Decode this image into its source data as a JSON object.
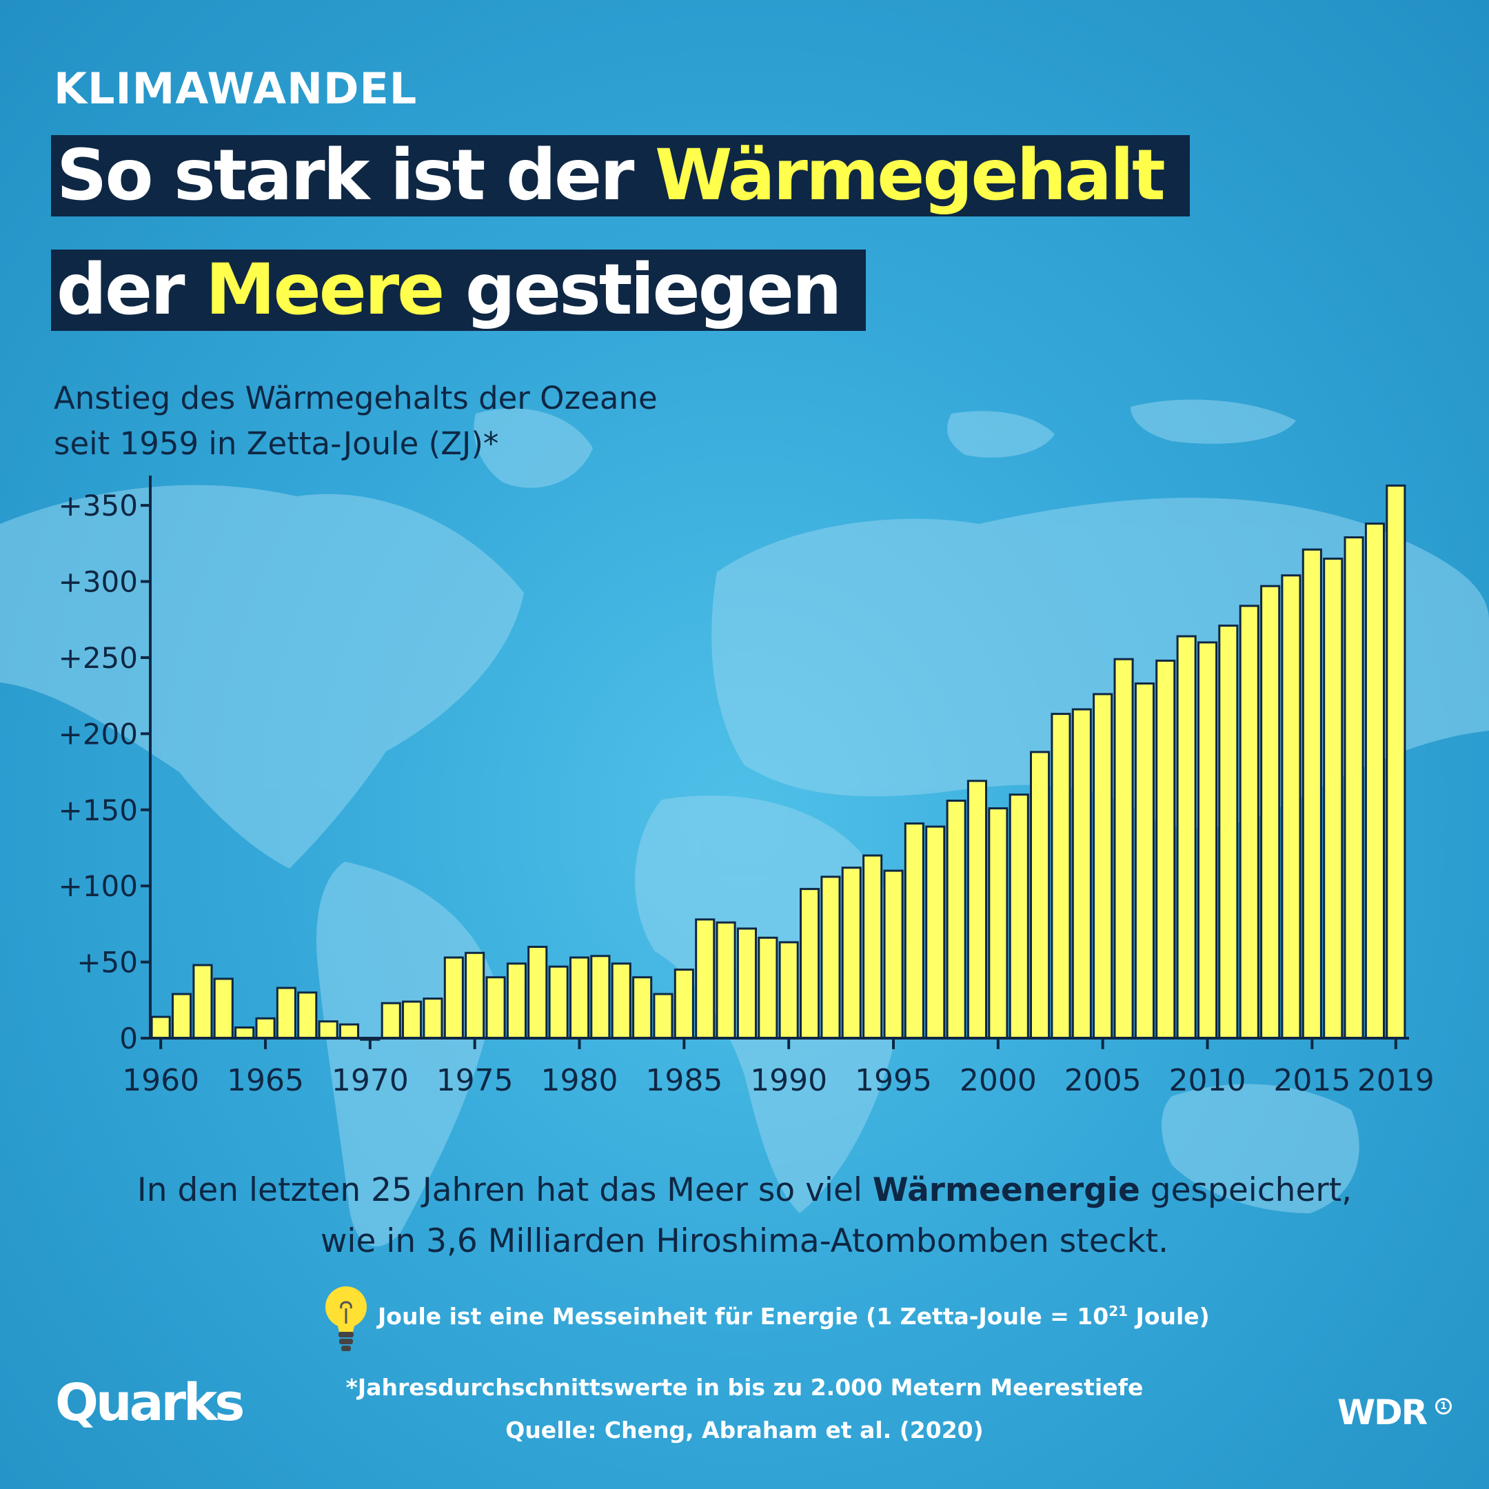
{
  "kicker": "KLIMAWANDEL",
  "headline": {
    "line1_part1": "So stark ist der ",
    "line1_highlight": "Wärmegehalt",
    "line2_part1": "der ",
    "line2_highlight": "Meere",
    "line2_part2": " gestiegen"
  },
  "subtitle": {
    "line1": "Anstieg des Wärmegehalts der Ozeane",
    "line2": "seit 1959 in Zetta-Joule (ZJ)*"
  },
  "statement": {
    "line1_part1": "In den letzten 25 Jahren hat das Meer so viel ",
    "line1_bold": "Wärmeenergie",
    "line1_part2": " gespeichert,",
    "line2": "wie in 3,6 Milliarden Hiroshima-Atombomben steckt."
  },
  "note": {
    "text_before": "Joule ist eine Messeinheit für Energie (1 Zetta-Joule = 10",
    "superscript": "21",
    "text_after": " Joule)"
  },
  "footnote": "*Jahresdurchschnittswerte in bis zu 2.000 Metern Meerestiefe",
  "source": "Quelle: Cheng, Abraham et al. (2020)",
  "brand_left": "Quarks",
  "brand_right": "WDR",
  "brand_right_mark": "1",
  "colors": {
    "background": "#35a8d9",
    "headline_box": "#0e2744",
    "highlight": "#ffff4c",
    "bar_fill": "#ffff66",
    "text_dark": "#0e2744",
    "land": "#8fd3ef"
  },
  "icons": [
    "world-map-background",
    "lightbulb-icon"
  ],
  "chart_data": {
    "type": "bar",
    "x": [
      1960,
      1961,
      1962,
      1963,
      1964,
      1965,
      1966,
      1967,
      1968,
      1969,
      1970,
      1971,
      1972,
      1973,
      1974,
      1975,
      1976,
      1977,
      1978,
      1979,
      1980,
      1981,
      1982,
      1983,
      1984,
      1985,
      1986,
      1987,
      1988,
      1989,
      1990,
      1991,
      1992,
      1993,
      1994,
      1995,
      1996,
      1997,
      1998,
      1999,
      2000,
      2001,
      2002,
      2003,
      2004,
      2005,
      2006,
      2007,
      2008,
      2009,
      2010,
      2011,
      2012,
      2013,
      2014,
      2015,
      2016,
      2017,
      2018,
      2019
    ],
    "values": [
      14,
      29,
      48,
      39,
      7,
      13,
      33,
      30,
      11,
      9,
      -1,
      23,
      24,
      26,
      53,
      56,
      40,
      49,
      60,
      47,
      53,
      54,
      49,
      40,
      29,
      45,
      78,
      76,
      72,
      66,
      63,
      98,
      106,
      112,
      120,
      110,
      141,
      139,
      156,
      169,
      151,
      160,
      188,
      213,
      216,
      226,
      249,
      233,
      248,
      264,
      260,
      271,
      284,
      297,
      304,
      321,
      315,
      329,
      338,
      363
    ],
    "yticks": [
      0,
      50,
      100,
      150,
      200,
      250,
      300,
      350
    ],
    "ytick_labels": [
      "0",
      "+50",
      "+100",
      "+150",
      "+200",
      "+250",
      "+300",
      "+350"
    ],
    "xtick_labels": [
      "1960",
      "1965",
      "1970",
      "1975",
      "1980",
      "1985",
      "1990",
      "1995",
      "2000",
      "2005",
      "2010",
      "2015",
      "2019"
    ],
    "ylim": [
      0,
      365
    ],
    "grid": false,
    "legend": "none"
  }
}
